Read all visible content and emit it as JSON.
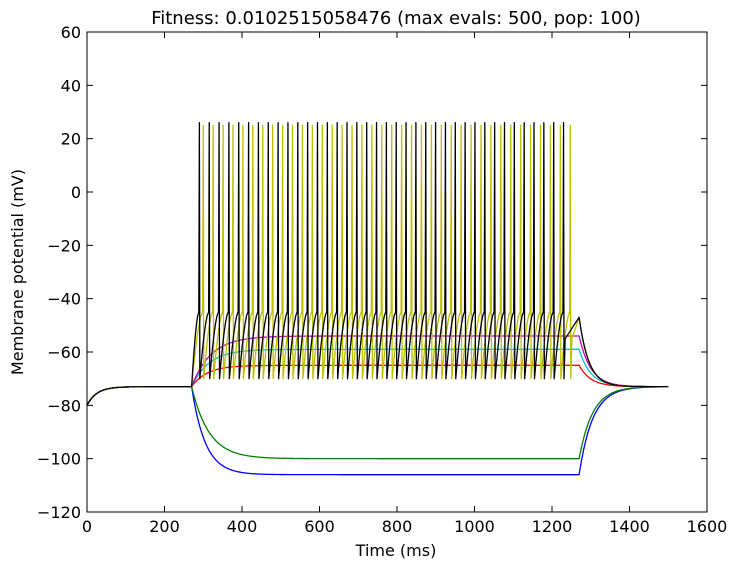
{
  "chart_data": {
    "type": "line",
    "title": "Fitness: 0.0102515058476 (max evals: 500, pop: 100)",
    "xlabel": "Time (ms)",
    "ylabel": "Membrane potential (mV)",
    "xlim": [
      0,
      1600
    ],
    "ylim": [
      -120,
      60
    ],
    "xticks": [
      0,
      200,
      400,
      600,
      800,
      1000,
      1200,
      1400,
      1600
    ],
    "yticks": [
      -120,
      -100,
      -80,
      -60,
      -40,
      -20,
      0,
      20,
      40,
      60
    ],
    "grid": false,
    "stimulus": {
      "start": 270,
      "end": 1270,
      "t_max": 1500,
      "rest": -73
    },
    "series": [
      {
        "color": "#0000ff",
        "kind": "hyper",
        "steady": -106,
        "tau": 35
      },
      {
        "color": "#008000",
        "kind": "hyper",
        "steady": -100,
        "tau": 45
      },
      {
        "color": "#ff0000",
        "kind": "sub",
        "steady": -65,
        "tau": 40
      },
      {
        "color": "#00bfbf",
        "kind": "sub",
        "steady": -59,
        "tau": 45
      },
      {
        "color": "#bf00bf",
        "kind": "sub",
        "steady": -54,
        "tau": 50
      },
      {
        "color": "#bfbf00",
        "kind": "spike",
        "first_spike": 300,
        "isi": 25.6,
        "peak": 25,
        "trough": -70,
        "last_spike": 1255
      },
      {
        "color": "#000000",
        "kind": "spike",
        "first_spike": 290,
        "isi": 25.4,
        "peak": 26,
        "trough": -70,
        "last_spike": 1255
      }
    ]
  }
}
